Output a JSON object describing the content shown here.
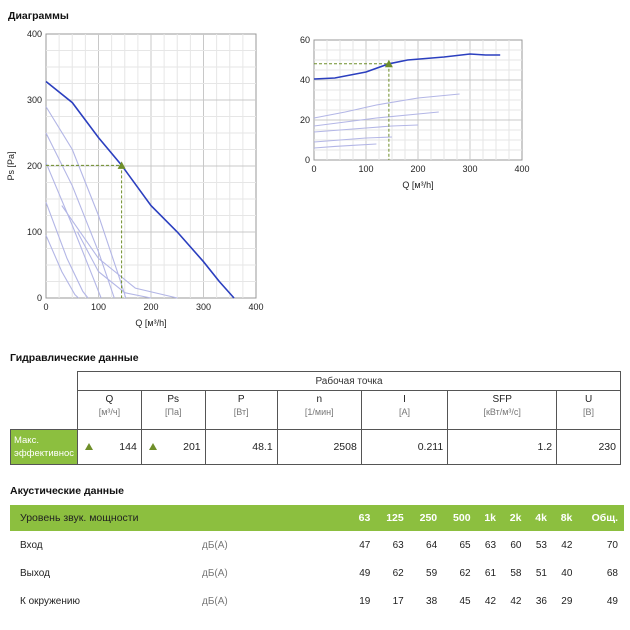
{
  "titles": {
    "diagrams": "Диаграммы",
    "hydraulic": "Гидравлические данные",
    "acoustic": "Акустические данные"
  },
  "colors": {
    "accent": "#8cbf3f",
    "curve": "#2b3fbf",
    "aux_curve": "#b3b6e6",
    "marker": "#6f8f2a",
    "guide": "#6f8f2a"
  },
  "chart_data": [
    {
      "type": "line",
      "xlabel": "Q [м³/h]",
      "ylabel": "Ps [Pa]",
      "xlim": [
        0,
        400
      ],
      "ylim": [
        0,
        400
      ],
      "xticks": [
        0,
        100,
        200,
        300,
        400
      ],
      "yticks": [
        0,
        100,
        200,
        300,
        400
      ],
      "grid": true,
      "main_curve": [
        [
          0,
          328
        ],
        [
          50,
          296
        ],
        [
          100,
          243
        ],
        [
          144,
          201
        ],
        [
          200,
          140
        ],
        [
          250,
          100
        ],
        [
          300,
          55
        ],
        [
          330,
          25
        ],
        [
          358,
          0
        ]
      ],
      "aux_curves": [
        [
          [
            0,
            290
          ],
          [
            50,
            225
          ],
          [
            100,
            125
          ],
          [
            140,
            30
          ],
          [
            152,
            0
          ]
        ],
        [
          [
            0,
            250
          ],
          [
            50,
            170
          ],
          [
            100,
            70
          ],
          [
            130,
            0
          ]
        ],
        [
          [
            0,
            205
          ],
          [
            50,
            110
          ],
          [
            90,
            30
          ],
          [
            105,
            0
          ]
        ],
        [
          [
            0,
            145
          ],
          [
            40,
            60
          ],
          [
            70,
            10
          ],
          [
            80,
            0
          ]
        ],
        [
          [
            0,
            95
          ],
          [
            30,
            40
          ],
          [
            55,
            5
          ],
          [
            62,
            0
          ]
        ],
        [
          [
            60,
            100
          ],
          [
            100,
            40
          ],
          [
            150,
            8
          ],
          [
            200,
            0
          ]
        ],
        [
          [
            30,
            140
          ],
          [
            100,
            60
          ],
          [
            170,
            15
          ],
          [
            250,
            0
          ]
        ]
      ],
      "operating_point": {
        "x": 144,
        "y": 201
      }
    },
    {
      "type": "line",
      "xlabel": "Q [м³/h]",
      "ylabel": "P [W]",
      "xlim": [
        0,
        400
      ],
      "ylim": [
        0,
        60
      ],
      "xticks": [
        0,
        100,
        200,
        300,
        400
      ],
      "yticks": [
        0,
        20,
        40,
        60
      ],
      "grid": true,
      "main_curve": [
        [
          0,
          40.5
        ],
        [
          40,
          41
        ],
        [
          100,
          44
        ],
        [
          144,
          48.1
        ],
        [
          180,
          50
        ],
        [
          250,
          51.5
        ],
        [
          300,
          53
        ],
        [
          330,
          52.5
        ],
        [
          358,
          52.5
        ]
      ],
      "aux_curves": [
        [
          [
            0,
            21
          ],
          [
            60,
            24
          ],
          [
            120,
            27.5
          ],
          [
            200,
            31
          ],
          [
            280,
            33
          ]
        ],
        [
          [
            0,
            17
          ],
          [
            60,
            19
          ],
          [
            120,
            21
          ],
          [
            200,
            23
          ],
          [
            240,
            24
          ]
        ],
        [
          [
            0,
            14
          ],
          [
            50,
            15
          ],
          [
            100,
            16
          ],
          [
            150,
            17
          ],
          [
            200,
            17.5
          ]
        ],
        [
          [
            0,
            9
          ],
          [
            50,
            10
          ],
          [
            100,
            11
          ],
          [
            150,
            11.5
          ]
        ],
        [
          [
            0,
            6
          ],
          [
            40,
            6.8
          ],
          [
            80,
            7.4
          ],
          [
            120,
            8
          ]
        ]
      ],
      "operating_point": {
        "x": 144,
        "y": 48.1
      }
    }
  ],
  "hydraulic": {
    "header": "Рабочая точка",
    "columns": [
      {
        "name": "Q",
        "unit": "[м³/ч]"
      },
      {
        "name": "Ps",
        "unit": "[Па]"
      },
      {
        "name": "P",
        "unit": "[Вт]"
      },
      {
        "name": "n",
        "unit": "[1/мин]"
      },
      {
        "name": "I",
        "unit": "[A]"
      },
      {
        "name": "SFP",
        "unit": "[кВт/м³/с]"
      },
      {
        "name": "U",
        "unit": "[B]"
      }
    ],
    "row_label_1": "Макс.",
    "row_label_2": "эффективнос",
    "values": [
      "144",
      "201",
      "48.1",
      "2508",
      "0.211",
      "1.2",
      "230"
    ]
  },
  "acoustic": {
    "header_label": "Уровень звук. мощности",
    "bands": [
      "63",
      "125",
      "250",
      "500",
      "1k",
      "2k",
      "4k",
      "8k",
      "Общ."
    ],
    "rows": [
      {
        "label": "Вход",
        "unit": "дБ(A)",
        "values": [
          "47",
          "63",
          "64",
          "65",
          "63",
          "60",
          "53",
          "42",
          "70"
        ]
      },
      {
        "label": "Выход",
        "unit": "дБ(A)",
        "values": [
          "49",
          "62",
          "59",
          "62",
          "61",
          "58",
          "51",
          "40",
          "68"
        ]
      },
      {
        "label": "К окружению",
        "unit": "дБ(A)",
        "values": [
          "19",
          "17",
          "38",
          "45",
          "42",
          "42",
          "36",
          "29",
          "49"
        ]
      }
    ]
  }
}
